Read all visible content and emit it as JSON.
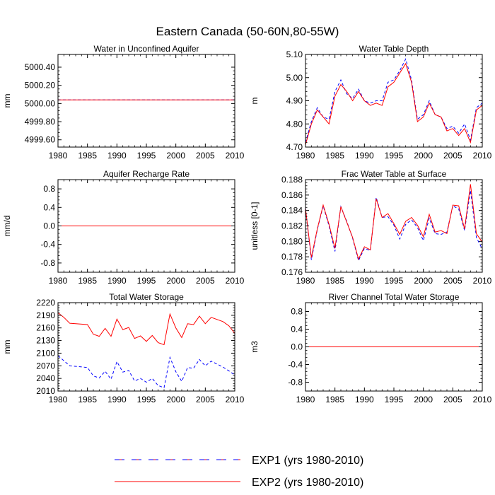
{
  "figure": {
    "title": "Eastern Canada (50-60N,80-55W)"
  },
  "legend": {
    "items": [
      {
        "label": "EXP1 (yrs 1980-2010)",
        "color": "#0000ff",
        "style": "dashed"
      },
      {
        "label": "EXP2 (yrs 1980-2010)",
        "color": "#ff0000",
        "style": "solid"
      }
    ]
  },
  "chart_data": [
    {
      "type": "line",
      "title": "Water in Unconfined Aquifer",
      "ylabel": "mm",
      "xlim": [
        1980,
        2010
      ],
      "ylim": [
        4999.52,
        5000.54
      ],
      "xticks": [
        1980,
        1985,
        1990,
        1995,
        2000,
        2005,
        2010
      ],
      "xtick_labels": [
        "1980",
        "1985",
        "1990",
        "1995",
        "2000",
        "2005",
        "2010"
      ],
      "yticks": [
        4999.6,
        4999.8,
        5000.0,
        5000.2,
        5000.4
      ],
      "ytick_labels": [
        "4999.60",
        "4999.80",
        "5000.00",
        "5000.20",
        "5000.40"
      ],
      "x": [
        1980,
        2010
      ],
      "series": [
        {
          "name": "EXP1 (yrs 1980-2010)",
          "color": "#0000ff",
          "style": "dashed",
          "values": [
            5000.04,
            5000.04
          ]
        },
        {
          "name": "EXP2 (yrs 1980-2010)",
          "color": "#ff0000",
          "style": "solid",
          "values": [
            5000.04,
            5000.04
          ]
        }
      ]
    },
    {
      "type": "line",
      "title": "Water Table Depth",
      "ylabel": "m",
      "xlim": [
        1980,
        2010
      ],
      "ylim": [
        4.7,
        5.1
      ],
      "xticks": [
        1980,
        1985,
        1990,
        1995,
        2000,
        2005,
        2010
      ],
      "xtick_labels": [
        "1980",
        "1985",
        "1990",
        "1995",
        "2000",
        "2005",
        "2010"
      ],
      "yticks": [
        4.7,
        4.8,
        4.9,
        5.0,
        5.1
      ],
      "ytick_labels": [
        "4.70",
        "4.80",
        "4.90",
        "5.00",
        "5.10"
      ],
      "x": [
        1980,
        1981,
        1982,
        1983,
        1984,
        1985,
        1986,
        1987,
        1988,
        1989,
        1990,
        1991,
        1992,
        1993,
        1994,
        1995,
        1996,
        1997,
        1998,
        1999,
        2000,
        2001,
        2002,
        2003,
        2004,
        2005,
        2006,
        2007,
        2008,
        2009,
        2010
      ],
      "series": [
        {
          "name": "EXP1 (yrs 1980-2010)",
          "color": "#0000ff",
          "style": "dashed",
          "values": [
            4.72,
            4.81,
            4.87,
            4.83,
            4.82,
            4.94,
            4.99,
            4.93,
            4.91,
            4.95,
            4.9,
            4.89,
            4.9,
            4.9,
            4.98,
            4.99,
            5.03,
            5.08,
            4.99,
            4.82,
            4.84,
            4.9,
            4.84,
            4.83,
            4.78,
            4.79,
            4.76,
            4.8,
            4.73,
            4.87,
            4.89
          ]
        },
        {
          "name": "EXP2 (yrs 1980-2010)",
          "color": "#ff0000",
          "style": "solid",
          "values": [
            4.71,
            4.8,
            4.86,
            4.83,
            4.8,
            4.92,
            4.97,
            4.94,
            4.9,
            4.94,
            4.9,
            4.88,
            4.89,
            4.88,
            4.96,
            4.98,
            5.02,
            5.06,
            4.98,
            4.81,
            4.83,
            4.89,
            4.84,
            4.83,
            4.77,
            4.78,
            4.75,
            4.78,
            4.72,
            4.86,
            4.88
          ]
        }
      ]
    },
    {
      "type": "line",
      "title": "Aquifer Recharge Rate",
      "ylabel": "mm/d",
      "xlim": [
        1980,
        2010
      ],
      "ylim": [
        -1.0,
        1.0
      ],
      "xticks": [
        1980,
        1985,
        1990,
        1995,
        2000,
        2005,
        2010
      ],
      "xtick_labels": [
        "1980",
        "1985",
        "1990",
        "1995",
        "2000",
        "2005",
        "2010"
      ],
      "yticks": [
        -0.8,
        -0.4,
        0.0,
        0.4,
        0.8
      ],
      "ytick_labels": [
        "-0.8",
        "-0.4",
        "0.0",
        "0.4",
        "0.8"
      ],
      "x": [
        1980,
        2010
      ],
      "series": [
        {
          "name": "EXP1 (yrs 1980-2010)",
          "color": "#0000ff",
          "style": "dashed",
          "values": [
            0.0,
            0.0
          ]
        },
        {
          "name": "EXP2 (yrs 1980-2010)",
          "color": "#ff0000",
          "style": "solid",
          "values": [
            0.0,
            0.0
          ]
        }
      ]
    },
    {
      "type": "line",
      "title": "Frac Water Table at Surface",
      "ylabel": "unitless [0-1]",
      "xlim": [
        1980,
        2010
      ],
      "ylim": [
        0.176,
        0.188
      ],
      "xticks": [
        1980,
        1985,
        1990,
        1995,
        2000,
        2005,
        2010
      ],
      "xtick_labels": [
        "1980",
        "1985",
        "1990",
        "1995",
        "2000",
        "2005",
        "2010"
      ],
      "yticks": [
        0.176,
        0.178,
        0.18,
        0.182,
        0.184,
        0.186,
        0.188
      ],
      "ytick_labels": [
        "0.176",
        "0.178",
        "0.180",
        "0.182",
        "0.184",
        "0.186",
        "0.188"
      ],
      "x": [
        1980,
        1981,
        1982,
        1983,
        1984,
        1985,
        1986,
        1987,
        1988,
        1989,
        1990,
        1991,
        1992,
        1993,
        1994,
        1995,
        1996,
        1997,
        1998,
        1999,
        2000,
        2001,
        2002,
        2003,
        2004,
        2005,
        2006,
        2007,
        2008,
        2009,
        2010
      ],
      "series": [
        {
          "name": "EXP1 (yrs 1980-2010)",
          "color": "#0000ff",
          "style": "dashed",
          "values": [
            0.1843,
            0.1776,
            0.1815,
            0.1846,
            0.182,
            0.1787,
            0.1845,
            0.1826,
            0.1804,
            0.1775,
            0.1791,
            0.1788,
            0.1857,
            0.1831,
            0.1832,
            0.1821,
            0.1803,
            0.1822,
            0.1828,
            0.1818,
            0.1801,
            0.183,
            0.181,
            0.1809,
            0.1812,
            0.1846,
            0.1842,
            0.1814,
            0.1866,
            0.1805,
            0.179
          ]
        },
        {
          "name": "EXP2 (yrs 1980-2010)",
          "color": "#ff0000",
          "style": "solid",
          "values": [
            0.1843,
            0.1779,
            0.1816,
            0.1847,
            0.1822,
            0.1791,
            0.1845,
            0.1825,
            0.1805,
            0.1777,
            0.1793,
            0.1789,
            0.1855,
            0.1831,
            0.1836,
            0.1823,
            0.1809,
            0.1826,
            0.1831,
            0.1821,
            0.1806,
            0.1835,
            0.1812,
            0.1814,
            0.181,
            0.1847,
            0.1846,
            0.1816,
            0.1874,
            0.181,
            0.1799
          ]
        }
      ]
    },
    {
      "type": "line",
      "title": "Total Water Storage",
      "ylabel": "mm",
      "xlim": [
        1980,
        2010
      ],
      "ylim": [
        2010,
        2220
      ],
      "xticks": [
        1980,
        1985,
        1990,
        1995,
        2000,
        2005,
        2010
      ],
      "xtick_labels": [
        "1980",
        "1985",
        "1990",
        "1995",
        "2000",
        "2005",
        "2010"
      ],
      "yticks": [
        2010,
        2040,
        2070,
        2100,
        2130,
        2160,
        2190,
        2220
      ],
      "ytick_labels": [
        "2010",
        "2040",
        "2070",
        "2100",
        "2130",
        "2160",
        "2190",
        "2220"
      ],
      "x": [
        1980,
        1981,
        1982,
        1985,
        1986,
        1987,
        1988,
        1989,
        1990,
        1991,
        1992,
        1993,
        1994,
        1995,
        1996,
        1997,
        1998,
        1999,
        2000,
        2001,
        2002,
        2003,
        2004,
        2005,
        2006,
        2008,
        2009,
        2010
      ],
      "series": [
        {
          "name": "EXP1 (yrs 1980-2010)",
          "color": "#0000ff",
          "style": "dashed",
          "values": [
            2094,
            2082,
            2070,
            2066,
            2046,
            2041,
            2057,
            2038,
            2080,
            2055,
            2059,
            2034,
            2040,
            2031,
            2040,
            2023,
            2018,
            2090,
            2056,
            2033,
            2066,
            2064,
            2085,
            2070,
            2081,
            2067,
            2058,
            2048
          ]
        },
        {
          "name": "EXP2 (yrs 1980-2010)",
          "color": "#ff0000",
          "style": "solid",
          "values": [
            2196,
            2185,
            2171,
            2168,
            2145,
            2140,
            2159,
            2140,
            2181,
            2156,
            2161,
            2135,
            2141,
            2128,
            2142,
            2125,
            2120,
            2193,
            2160,
            2137,
            2170,
            2168,
            2188,
            2170,
            2185,
            2175,
            2165,
            2147
          ]
        }
      ]
    },
    {
      "type": "line",
      "title": "River Channel Total Water Storage",
      "ylabel": "m3",
      "xlim": [
        1980,
        2010
      ],
      "ylim": [
        -1.0,
        1.0
      ],
      "xticks": [
        1980,
        1985,
        1990,
        1995,
        2000,
        2005,
        2010
      ],
      "xtick_labels": [
        "1980",
        "1985",
        "1990",
        "1995",
        "2000",
        "2005",
        "2010"
      ],
      "yticks": [
        -0.8,
        -0.4,
        0.0,
        0.4,
        0.8
      ],
      "ytick_labels": [
        "-0.8",
        "-0.4",
        "0.0",
        "0.4",
        "0.8"
      ],
      "x": [
        1980,
        2010
      ],
      "series": [
        {
          "name": "EXP1 (yrs 1980-2010)",
          "color": "#0000ff",
          "style": "dashed",
          "values": [
            0.0,
            0.0
          ]
        },
        {
          "name": "EXP2 (yrs 1980-2010)",
          "color": "#ff0000",
          "style": "solid",
          "values": [
            0.0,
            0.0
          ]
        }
      ]
    }
  ]
}
